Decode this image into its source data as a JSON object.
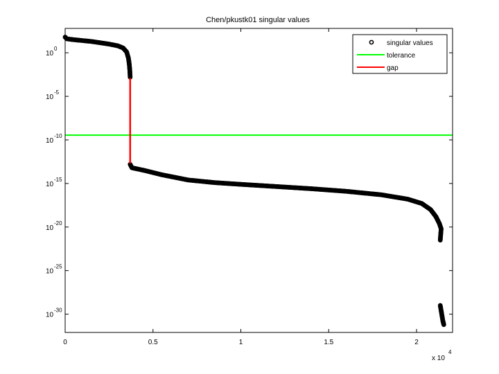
{
  "chart_data": {
    "type": "scatter",
    "title": "Chen/pkustk01 singular values",
    "xlabel": "",
    "ylabel": "",
    "x_multiplier_label": "x 10",
    "x_multiplier_exp": "4",
    "xscale": "linear",
    "yscale": "log",
    "xlim": [
      0,
      22050
    ],
    "ylim_log10": [
      -32.1,
      2.8
    ],
    "grid": false,
    "legend_position": "upper right",
    "x_ticks": [
      {
        "value": 0,
        "label": "0"
      },
      {
        "value": 5000,
        "label": "0.5"
      },
      {
        "value": 10000,
        "label": "1"
      },
      {
        "value": 15000,
        "label": "1.5"
      },
      {
        "value": 20000,
        "label": "2"
      }
    ],
    "y_ticks": [
      {
        "log10": 0,
        "base": "10",
        "exp": "0"
      },
      {
        "log10": -5,
        "base": "10",
        "exp": "-5"
      },
      {
        "log10": -10,
        "base": "10",
        "exp": "-10"
      },
      {
        "log10": -15,
        "base": "10",
        "exp": "-15"
      },
      {
        "log10": -20,
        "base": "10",
        "exp": "-20"
      },
      {
        "log10": -25,
        "base": "10",
        "exp": "-25"
      },
      {
        "log10": -30,
        "base": "10",
        "exp": "-30"
      }
    ],
    "legend": [
      {
        "label": "singular values",
        "kind": "marker",
        "color": "#000000"
      },
      {
        "label": "tolerance",
        "kind": "line",
        "color": "#00ff00"
      },
      {
        "label": "gap",
        "kind": "line",
        "color": "#ff0000"
      }
    ],
    "series": [
      {
        "name": "singular values",
        "color": "#000000",
        "marker": "o",
        "points_log10": [
          [
            0,
            1.8
          ],
          [
            100,
            1.6
          ],
          [
            500,
            1.5
          ],
          [
            1000,
            1.4
          ],
          [
            1500,
            1.3
          ],
          [
            2000,
            1.15
          ],
          [
            2500,
            1.0
          ],
          [
            3000,
            0.8
          ],
          [
            3300,
            0.55
          ],
          [
            3500,
            0.1
          ],
          [
            3600,
            -0.6
          ],
          [
            3650,
            -1.3
          ],
          [
            3680,
            -2.0
          ],
          [
            3700,
            -2.8
          ],
          [
            3700,
            -12.8
          ],
          [
            3800,
            -13.2
          ],
          [
            4500,
            -13.5
          ],
          [
            5500,
            -14.0
          ],
          [
            7000,
            -14.6
          ],
          [
            8500,
            -14.9
          ],
          [
            10000,
            -15.1
          ],
          [
            12000,
            -15.35
          ],
          [
            14000,
            -15.6
          ],
          [
            16000,
            -15.9
          ],
          [
            18000,
            -16.3
          ],
          [
            19500,
            -16.8
          ],
          [
            20300,
            -17.3
          ],
          [
            20800,
            -18.0
          ],
          [
            21100,
            -18.8
          ],
          [
            21300,
            -19.6
          ],
          [
            21400,
            -20.2
          ],
          [
            21350,
            -21.5
          ],
          [
            21350,
            -29.0
          ],
          [
            21400,
            -29.6
          ],
          [
            21450,
            -30.2
          ],
          [
            21500,
            -30.8
          ],
          [
            21550,
            -31.2
          ]
        ]
      },
      {
        "name": "tolerance",
        "color": "#00ff00",
        "type": "hline",
        "log10_value": -9.45
      },
      {
        "name": "gap",
        "color": "#ff0000",
        "type": "vline",
        "x": 3700,
        "log10_from": -2.9,
        "log10_to": -12.7
      }
    ]
  }
}
